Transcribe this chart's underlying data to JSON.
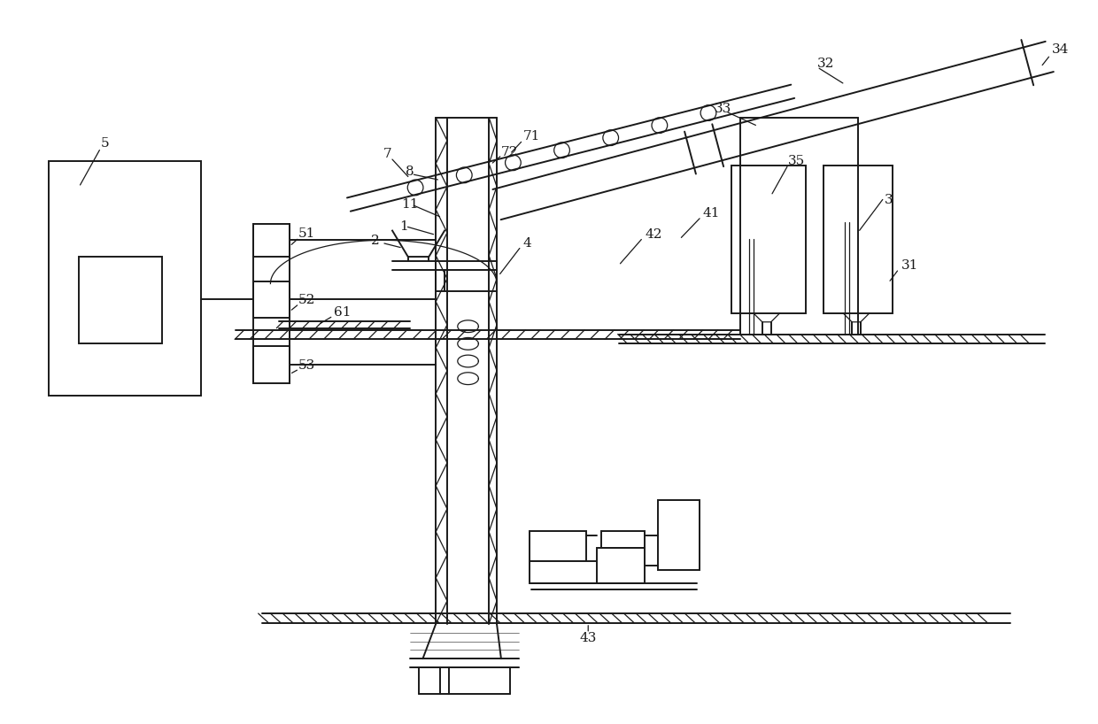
{
  "bg_color": "#ffffff",
  "lc": "#1a1a1a",
  "lw": 1.4,
  "tlw": 0.9
}
